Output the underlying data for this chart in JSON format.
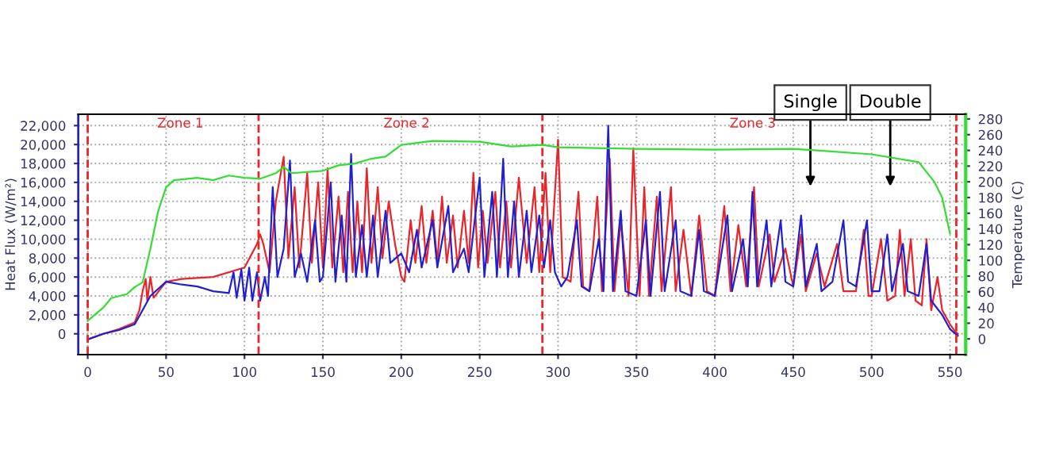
{
  "chart_data": {
    "type": "line",
    "ylabel": "Heat Flux (W/m²)",
    "y2label": "Temperature (C)",
    "xlim": [
      -6,
      560
    ],
    "xticks": [
      0,
      50,
      100,
      150,
      200,
      250,
      300,
      350,
      400,
      450,
      500,
      550
    ],
    "ylim": [
      -2200,
      23200
    ],
    "yticks": [
      {
        "value": 0,
        "label": "0"
      },
      {
        "value": 2000,
        "label": "2,000"
      },
      {
        "value": 4000,
        "label": "4,000"
      },
      {
        "value": 6000,
        "label": "6,000"
      },
      {
        "value": 8000,
        "label": "8,000"
      },
      {
        "value": 10000,
        "label": "10,000"
      },
      {
        "value": 12000,
        "label": "12,000"
      },
      {
        "value": 14000,
        "label": "14,000"
      },
      {
        "value": 16000,
        "label": "16,000"
      },
      {
        "value": 18000,
        "label": "18,000"
      },
      {
        "value": 20000,
        "label": "20,000"
      },
      {
        "value": 22000,
        "label": "22,000"
      }
    ],
    "y2lim": [
      -20,
      286
    ],
    "y2ticks": [
      0,
      20,
      40,
      60,
      80,
      100,
      120,
      140,
      160,
      180,
      200,
      220,
      240,
      260,
      280
    ],
    "grid": true,
    "line_style": "solid",
    "marker": "none",
    "series": [
      {
        "color": "#e8252a",
        "x": [
          0,
          10,
          20,
          30,
          33,
          35,
          37,
          38,
          40,
          42,
          50,
          60,
          80,
          100,
          108,
          110,
          112,
          114,
          116,
          120,
          125,
          128,
          132,
          135,
          140,
          143,
          147,
          150,
          153,
          156,
          160,
          163,
          166,
          169,
          172,
          175,
          178,
          181,
          185,
          188,
          192,
          196,
          200,
          202,
          206,
          209,
          213,
          216,
          220,
          223,
          226,
          229,
          233,
          236,
          240,
          243,
          246,
          249,
          252,
          255,
          260,
          263,
          267,
          270,
          275,
          280,
          285,
          288,
          292,
          295,
          300,
          303,
          308,
          313,
          316,
          320,
          325,
          328,
          333,
          336,
          340,
          345,
          348,
          352,
          355,
          358,
          363,
          366,
          372,
          375,
          380,
          385,
          390,
          395,
          400,
          406,
          410,
          415,
          420,
          425,
          428,
          435,
          438,
          445,
          450,
          455,
          458,
          465,
          470,
          478,
          482,
          490,
          495,
          498,
          500,
          506,
          510,
          515,
          518,
          521,
          525,
          528,
          532,
          535,
          538,
          542,
          545,
          550,
          553,
          555
        ],
        "values": [
          -600,
          0,
          500,
          1200,
          2500,
          4500,
          5800,
          3500,
          6000,
          3800,
          5500,
          5800,
          6000,
          7000,
          9500,
          10500,
          9500,
          8000,
          6500,
          14000,
          18700,
          8000,
          15500,
          7000,
          17000,
          7500,
          16000,
          7000,
          17500,
          7000,
          14500,
          6500,
          15000,
          6500,
          14000,
          6500,
          17500,
          7500,
          15500,
          8000,
          14000,
          9500,
          6000,
          5500,
          12000,
          7500,
          13500,
          7500,
          13000,
          7500,
          14500,
          7500,
          12500,
          7000,
          13000,
          7500,
          17000,
          7000,
          13000,
          7500,
          15000,
          7000,
          14000,
          7000,
          16500,
          7500,
          15500,
          6500,
          17000,
          6500,
          20500,
          6000,
          5500,
          15000,
          5000,
          4500,
          14500,
          4500,
          18500,
          4500,
          12000,
          4000,
          19600,
          4000,
          15500,
          4000,
          14500,
          4500,
          15500,
          4500,
          11000,
          4000,
          12500,
          4500,
          4000,
          13500,
          4500,
          11500,
          5000,
          15500,
          5000,
          10500,
          5500,
          9000,
          5000,
          10500,
          4500,
          8500,
          5000,
          9500,
          4500,
          4500,
          11000,
          4000,
          4000,
          10000,
          3500,
          4000,
          11000,
          4000,
          10000,
          3500,
          3000,
          10000,
          2500,
          6000,
          2500,
          1000,
          300,
          0
        ]
      },
      {
        "color": "#2020d0",
        "x": [
          0,
          10,
          20,
          30,
          35,
          40,
          50,
          60,
          70,
          80,
          90,
          93,
          95,
          98,
          100,
          103,
          105,
          108,
          110,
          113,
          115,
          118,
          121,
          125,
          129,
          132,
          136,
          140,
          145,
          148,
          150,
          155,
          158,
          162,
          165,
          168,
          171,
          175,
          178,
          182,
          185,
          190,
          193,
          200,
          205,
          210,
          213,
          220,
          223,
          230,
          233,
          240,
          243,
          250,
          253,
          258,
          261,
          265,
          268,
          272,
          275,
          280,
          283,
          288,
          291,
          295,
          298,
          302,
          306,
          312,
          315,
          320,
          326,
          329,
          332,
          335,
          340,
          343,
          350,
          356,
          359,
          365,
          368,
          375,
          378,
          385,
          390,
          393,
          400,
          408,
          411,
          418,
          421,
          424,
          427,
          433,
          436,
          442,
          445,
          450,
          455,
          458,
          465,
          468,
          475,
          482,
          485,
          490,
          497,
          500,
          505,
          510,
          513,
          520,
          523,
          530,
          535,
          538,
          545,
          550,
          555
        ],
        "values": [
          -600,
          0,
          400,
          1000,
          2500,
          4000,
          5500,
          5200,
          5000,
          4500,
          4300,
          6500,
          3800,
          6800,
          3500,
          7000,
          3500,
          6500,
          3500,
          6000,
          4000,
          15500,
          6000,
          9000,
          18300,
          6000,
          8500,
          5500,
          12000,
          5500,
          6000,
          16000,
          5500,
          12500,
          5500,
          19000,
          6000,
          11500,
          6000,
          12500,
          6000,
          13000,
          7500,
          8500,
          6500,
          11000,
          7000,
          12000,
          7000,
          13500,
          6500,
          9000,
          6500,
          16500,
          6000,
          15000,
          6000,
          18500,
          6000,
          14000,
          6000,
          13000,
          6500,
          12500,
          7000,
          12000,
          6500,
          5000,
          6000,
          12000,
          5000,
          4500,
          10000,
          4500,
          22000,
          4500,
          13000,
          4500,
          4000,
          12000,
          4000,
          15000,
          4500,
          12000,
          4500,
          4000,
          11000,
          4500,
          4000,
          12500,
          4500,
          10000,
          5000,
          15000,
          5000,
          12000,
          5000,
          12000,
          5500,
          5000,
          12500,
          5000,
          9500,
          4500,
          5500,
          12000,
          5500,
          5000,
          12000,
          4500,
          4500,
          10500,
          4500,
          9500,
          4500,
          4000,
          9500,
          3500,
          2000,
          500,
          -200
        ]
      },
      {
        "color": "#33dd33",
        "axis": "y2",
        "x": [
          0,
          10,
          15,
          25,
          30,
          35,
          40,
          45,
          50,
          55,
          70,
          80,
          90,
          100,
          110,
          120,
          125,
          130,
          150,
          160,
          170,
          180,
          190,
          200,
          220,
          250,
          270,
          290,
          300,
          350,
          400,
          450,
          500,
          530,
          540,
          545,
          550
        ],
        "values": [
          23,
          40,
          52,
          57,
          66,
          72,
          115,
          163,
          193,
          202,
          205,
          202,
          208,
          205,
          204,
          211,
          219,
          211,
          214,
          221,
          223,
          229,
          232,
          247,
          252,
          251,
          245,
          247,
          244,
          242,
          241,
          242,
          235,
          225,
          200,
          180,
          134
        ]
      }
    ],
    "ref_lines": [
      {
        "axis": "x",
        "value": 0,
        "color": "#e8252a",
        "line_style": "dashed"
      },
      {
        "axis": "x",
        "value": 109,
        "color": "#e8252a",
        "line_style": "dashed"
      },
      {
        "axis": "x",
        "value": 290,
        "color": "#e8252a",
        "line_style": "dashed"
      },
      {
        "axis": "x",
        "value": 554,
        "color": "#e8252a",
        "line_style": "dashed"
      }
    ],
    "annotations": [
      "Zone 1",
      "Zone 2",
      "Zone 3",
      "Single",
      "Double"
    ]
  }
}
